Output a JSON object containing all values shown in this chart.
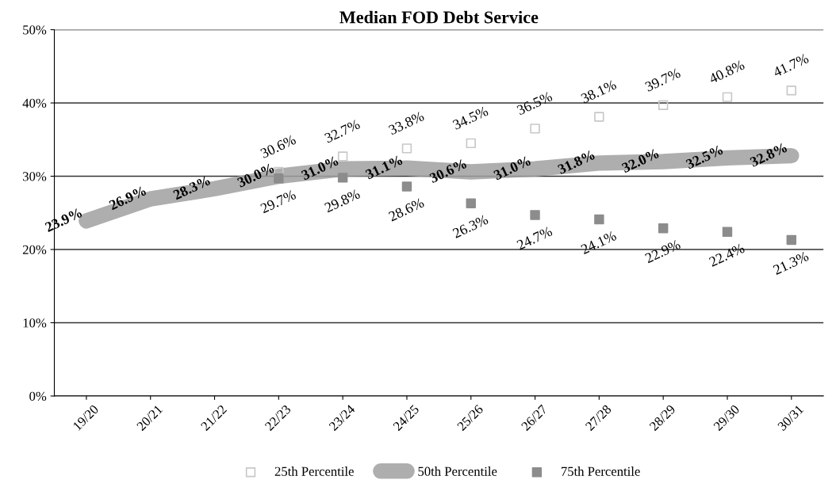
{
  "chart_data": {
    "type": "line",
    "title": "Median FOD Debt Service",
    "categories": [
      "19/20",
      "20/21",
      "21/22",
      "22/23",
      "23/24",
      "24/25",
      "25/26",
      "26/27",
      "27/28",
      "28/29",
      "29/30",
      "30/31"
    ],
    "series": [
      {
        "name": "25th Percentile",
        "type": "scatter",
        "marker": "square",
        "color": "#c8c8c8",
        "values": [
          null,
          null,
          null,
          30.6,
          32.7,
          33.8,
          34.5,
          36.5,
          38.1,
          39.7,
          40.8,
          41.7
        ],
        "value_labels": [
          null,
          null,
          null,
          "30.6%",
          "32.7%",
          "33.8%",
          "34.5%",
          "36.5%",
          "38.1%",
          "39.7%",
          "40.8%",
          "41.7%"
        ]
      },
      {
        "name": "50th Percentile",
        "marker": "none",
        "line_style": "solid",
        "color": "#a0a0a0",
        "values": [
          23.9,
          26.9,
          28.3,
          30.0,
          31.0,
          31.1,
          30.6,
          31.0,
          31.8,
          32.0,
          32.5,
          32.8
        ],
        "value_labels": [
          "23.9%",
          "26.9%",
          "28.3%",
          "30.0%",
          "31.0%",
          "31.1%",
          "30.6%",
          "31.0%",
          "31.8%",
          "32.0%",
          "32.5%",
          "32.8%"
        ]
      },
      {
        "name": "75th Percentile",
        "type": "scatter",
        "marker": "square",
        "color": "#8c8c8c",
        "values": [
          null,
          null,
          null,
          29.7,
          29.8,
          28.6,
          26.3,
          24.7,
          24.1,
          22.9,
          22.4,
          21.3
        ],
        "value_labels": [
          null,
          null,
          null,
          "29.7%",
          "29.8%",
          "28.6%",
          "26.3%",
          "24.7%",
          "24.1%",
          "22.9%",
          "22.4%",
          "21.3%"
        ]
      }
    ],
    "ylim": [
      0,
      50
    ],
    "yticks": [
      {
        "value": 0,
        "label": "0%"
      },
      {
        "value": 10,
        "label": "10%"
      },
      {
        "value": 20,
        "label": "20%"
      },
      {
        "value": 30,
        "label": "30%"
      },
      {
        "value": 40,
        "label": "40%"
      },
      {
        "value": 50,
        "label": "50%"
      }
    ],
    "grid": "y",
    "legend": "bottom"
  }
}
